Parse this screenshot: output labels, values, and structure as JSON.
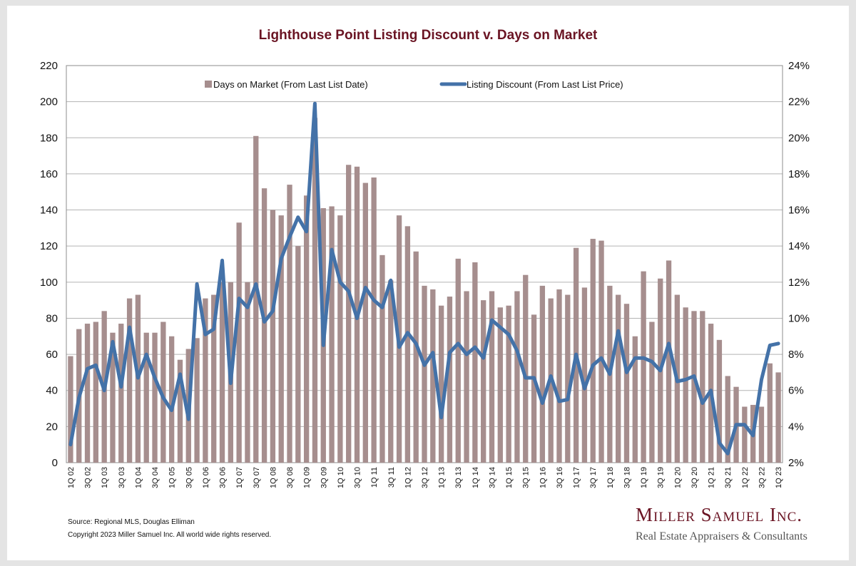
{
  "chart_data": {
    "type": "bar+line",
    "title": "Lighthouse Point Listing Discount v. Days on Market",
    "categories": [
      "1Q 02",
      "2Q 02",
      "3Q 02",
      "4Q 02",
      "1Q 03",
      "2Q 03",
      "3Q 03",
      "4Q 03",
      "1Q 04",
      "2Q 04",
      "3Q 04",
      "4Q 04",
      "1Q 05",
      "2Q 05",
      "3Q 05",
      "4Q 05",
      "1Q 06",
      "2Q 06",
      "3Q 06",
      "4Q 06",
      "1Q 07",
      "2Q 07",
      "3Q 07",
      "4Q 07",
      "1Q 08",
      "2Q 08",
      "3Q 08",
      "4Q 08",
      "1Q 09",
      "2Q 09",
      "3Q 09",
      "4Q 09",
      "1Q 10",
      "2Q 10",
      "3Q 10",
      "4Q 10",
      "1Q 11",
      "2Q 11",
      "3Q 11",
      "4Q 11",
      "1Q 12",
      "2Q 12",
      "3Q 12",
      "4Q 12",
      "1Q 13",
      "2Q 13",
      "3Q 13",
      "4Q 13",
      "1Q 14",
      "2Q 14",
      "3Q 14",
      "4Q 14",
      "1Q 15",
      "2Q 15",
      "3Q 15",
      "4Q 15",
      "1Q 16",
      "2Q 16",
      "3Q 16",
      "4Q 16",
      "1Q 17",
      "2Q 17",
      "3Q 17",
      "4Q 17",
      "1Q 18",
      "2Q 18",
      "3Q 18",
      "4Q 18",
      "1Q 19",
      "2Q 19",
      "3Q 19",
      "4Q 19",
      "1Q 20",
      "2Q 20",
      "3Q 20",
      "4Q 20",
      "1Q 21",
      "2Q 21",
      "3Q 21",
      "4Q 21",
      "1Q 22",
      "2Q 22",
      "3Q 22",
      "4Q 22",
      "1Q 23"
    ],
    "tick_labels": [
      "1Q 02",
      "3Q 02",
      "1Q 03",
      "3Q 03",
      "1Q 04",
      "3Q 04",
      "1Q 05",
      "3Q 05",
      "1Q 06",
      "3Q 06",
      "1Q 07",
      "3Q 07",
      "1Q 08",
      "3Q 08",
      "1Q 09",
      "3Q 09",
      "1Q 10",
      "3Q 10",
      "1Q 11",
      "3Q 11",
      "1Q 12",
      "3Q 12",
      "1Q 13",
      "3Q 13",
      "1Q 14",
      "3Q 14",
      "1Q 15",
      "3Q 15",
      "1Q 16",
      "3Q 16",
      "1Q 17",
      "3Q 17",
      "1Q 18",
      "3Q 18",
      "1Q 19",
      "3Q 19",
      "1Q 20",
      "3Q 20",
      "1Q 21",
      "3Q 21",
      "1Q 22",
      "3Q 22",
      "1Q 23"
    ],
    "series": [
      {
        "name": "Days on Market (From Last List Date)",
        "type": "bar",
        "axis": "left",
        "color": "#a68e8e",
        "values": [
          59,
          74,
          77,
          78,
          84,
          72,
          77,
          91,
          93,
          72,
          72,
          78,
          70,
          57,
          63,
          69,
          91,
          93,
          100,
          100,
          133,
          100,
          181,
          152,
          140,
          137,
          154,
          120,
          148,
          191,
          141,
          142,
          137,
          165,
          164,
          155,
          158,
          115,
          101,
          137,
          131,
          117,
          98,
          96,
          87,
          92,
          113,
          95,
          111,
          90,
          95,
          86,
          87,
          95,
          104,
          82,
          98,
          91,
          96,
          93,
          119,
          97,
          124,
          123,
          98,
          93,
          88,
          70,
          106,
          78,
          102,
          112,
          93,
          86,
          84,
          84,
          77,
          68,
          48,
          42,
          31,
          32,
          31,
          55,
          50
        ]
      },
      {
        "name": "Listing Discount (From Last List Price)",
        "type": "line",
        "axis": "right",
        "unit": "%",
        "color": "#4472a8",
        "values": [
          3.0,
          5.6,
          7.2,
          7.4,
          6.0,
          8.7,
          6.2,
          9.5,
          6.7,
          8.0,
          6.7,
          5.6,
          4.9,
          6.9,
          4.4,
          11.9,
          9.1,
          9.4,
          13.2,
          6.4,
          11.1,
          10.6,
          11.9,
          9.8,
          10.4,
          13.3,
          14.5,
          15.6,
          14.8,
          21.9,
          8.5,
          13.8,
          12.0,
          11.5,
          10.0,
          11.7,
          11.0,
          10.6,
          12.1,
          8.4,
          9.2,
          8.6,
          7.4,
          8.1,
          4.5,
          8.1,
          8.6,
          8.0,
          8.4,
          7.8,
          9.9,
          9.5,
          9.1,
          8.2,
          6.7,
          6.7,
          5.3,
          6.8,
          5.4,
          5.5,
          8.0,
          6.1,
          7.4,
          7.8,
          6.9,
          9.3,
          7.0,
          7.8,
          7.8,
          7.6,
          7.1,
          8.6,
          6.5,
          6.6,
          6.8,
          5.3,
          6.0,
          3.1,
          2.5,
          4.1,
          4.1,
          3.5,
          6.6,
          8.5,
          8.6
        ]
      }
    ],
    "y_left": {
      "min": 0,
      "max": 220,
      "step": 20,
      "ticks": [
        "0",
        "20",
        "40",
        "60",
        "80",
        "100",
        "120",
        "140",
        "160",
        "180",
        "200",
        "220"
      ]
    },
    "y_right": {
      "min": 2,
      "max": 24,
      "step": 2,
      "ticks": [
        "2%",
        "4%",
        "6%",
        "8%",
        "10%",
        "12%",
        "14%",
        "16%",
        "18%",
        "20%",
        "22%",
        "24%"
      ]
    },
    "grid": true,
    "legend_position": "top"
  },
  "footer": {
    "source": "Source: Regional MLS, Douglas Elliman",
    "copyright": "Copyright 2023 Miller Samuel Inc.  All world wide rights reserved."
  },
  "brand": {
    "name": "Miller Samuel Inc.",
    "tagline": "Real Estate Appraisers & Consultants"
  }
}
